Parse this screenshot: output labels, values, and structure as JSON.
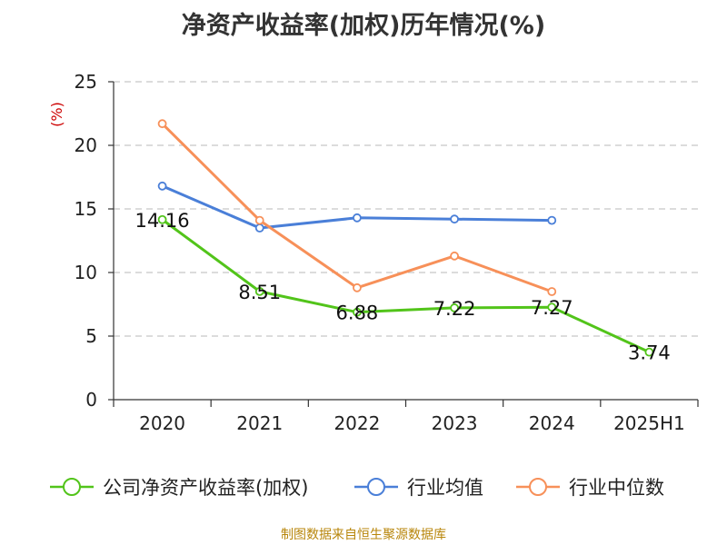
{
  "title": "净资产收益率(加权)历年情况(%)",
  "source": "制图数据来自恒生聚源数据库",
  "chart_data": {
    "type": "line",
    "title": "净资产收益率(加权)历年情况(%)",
    "ylabel": "(%)",
    "xlabel": "",
    "categories": [
      "2020",
      "2021",
      "2022",
      "2023",
      "2024",
      "2025H1"
    ],
    "ylim": [
      0,
      25
    ],
    "yticks": [
      0,
      5,
      10,
      15,
      20,
      25
    ],
    "grid": true,
    "legend_position": "bottom",
    "series": [
      {
        "name": "公司净资产收益率(加权)",
        "color": "#52c41a",
        "values": [
          14.16,
          8.51,
          6.88,
          7.22,
          7.27,
          3.74
        ],
        "labels": [
          "14.16",
          "8.51",
          "6.88",
          "7.22",
          "7.27",
          "3.74"
        ]
      },
      {
        "name": "行业均值",
        "color": "#4a7fd8",
        "values": [
          16.8,
          13.5,
          14.3,
          14.2,
          14.1,
          null
        ]
      },
      {
        "name": "行业中位数",
        "color": "#f79059",
        "values": [
          21.7,
          14.1,
          8.8,
          11.3,
          8.5,
          null
        ]
      }
    ]
  }
}
